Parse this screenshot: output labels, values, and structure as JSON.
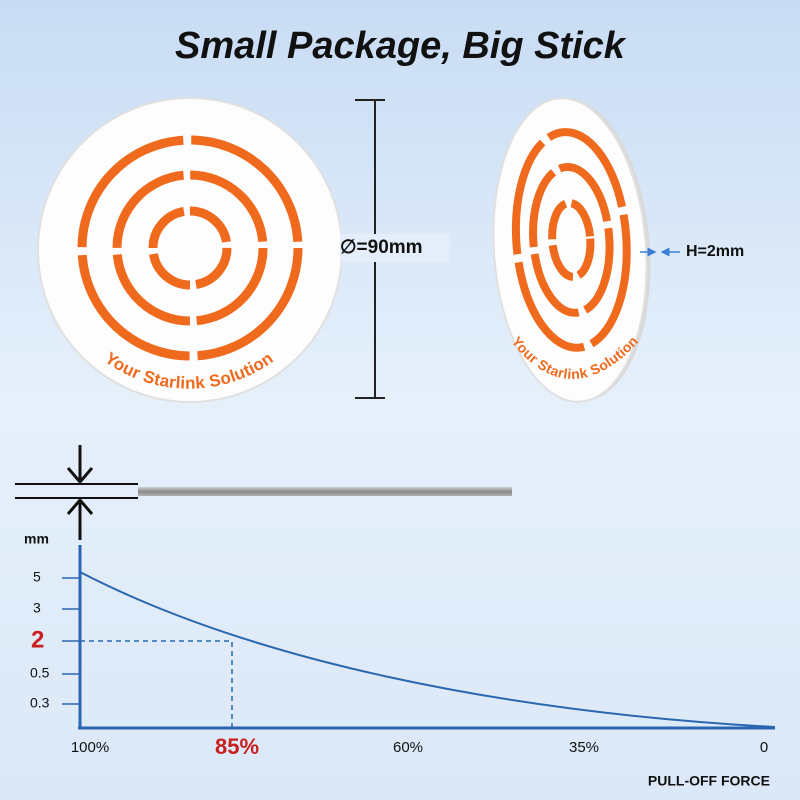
{
  "header": {
    "title": "Small Package, Big Stick"
  },
  "product": {
    "brand_text_front": "Your Starlink Solution",
    "brand_text_side": "Your Starlink Solution",
    "diameter_label": "∅=90mm",
    "height_label": "H=2mm"
  },
  "graph": {
    "y_unit": "mm",
    "y_ticks": [
      "5",
      "3",
      "2",
      "0.5",
      "0.3"
    ],
    "x_ticks": [
      "100%",
      "85%",
      "60%",
      "35%",
      "0"
    ],
    "x_title": "PULL-OFF FORCE"
  }
}
